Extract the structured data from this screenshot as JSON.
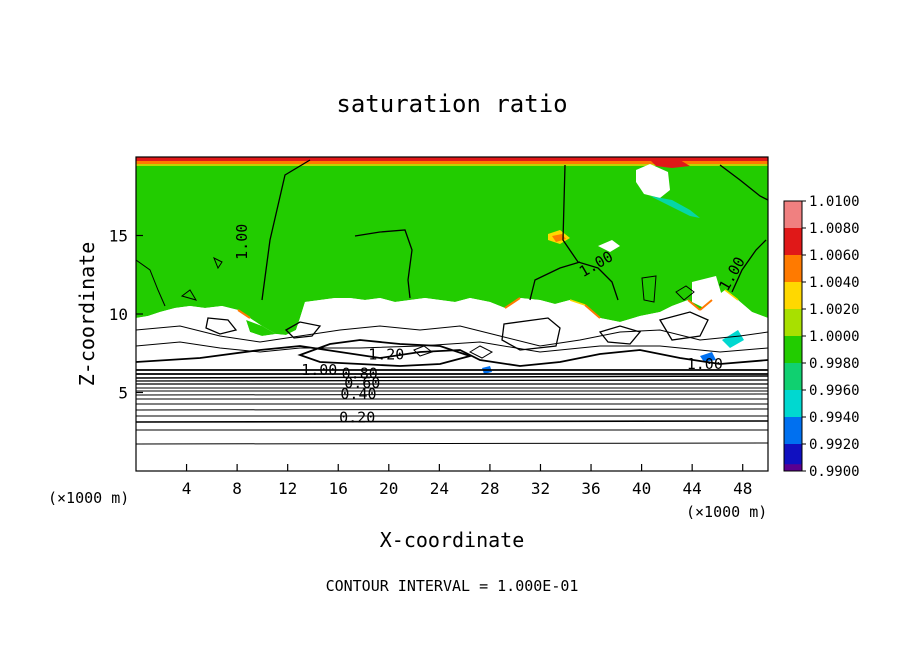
{
  "chart_data": {
    "type": "heatmap",
    "title": "saturation ratio",
    "xlabel": "X-coordinate",
    "ylabel": "Z-coordinate",
    "x_unit_label": "(×1000 m)",
    "y_unit_label": "(×1000 m)",
    "xlim": [
      0,
      50
    ],
    "ylim": [
      0,
      20
    ],
    "x_ticks": [
      4,
      8,
      12,
      16,
      20,
      24,
      28,
      32,
      36,
      40,
      44,
      48
    ],
    "y_ticks": [
      5,
      10,
      15
    ],
    "colorbar": {
      "levels": [
        "1.0100",
        "1.0080",
        "1.0060",
        "1.0040",
        "1.0020",
        "1.0000",
        "0.9980",
        "0.9960",
        "0.9940",
        "0.9920",
        "0.9900"
      ],
      "colors": [
        "#f08080",
        "#e01818",
        "#ff7a00",
        "#ffd800",
        "#a8e000",
        "#22cc00",
        "#10d070",
        "#00d8d0",
        "#0070f0",
        "#1010c0",
        "#5a0090"
      ]
    },
    "contour_labels": [
      {
        "text": "1.00",
        "x": 8.8,
        "z": 14.6
      },
      {
        "text": "1.00",
        "x": 36.6,
        "z": 12.9
      },
      {
        "text": "1.00",
        "x": 47.5,
        "z": 12.4
      },
      {
        "text": "1.20",
        "x": 19.8,
        "z": 7.1
      },
      {
        "text": "1.00",
        "x": 14.5,
        "z": 6.1
      },
      {
        "text": "0.80",
        "x": 17.7,
        "z": 5.9
      },
      {
        "text": "0.60",
        "x": 17.9,
        "z": 5.3
      },
      {
        "text": "0.40",
        "x": 17.6,
        "z": 4.6
      },
      {
        "text": "0.20",
        "x": 17.5,
        "z": 3.1
      },
      {
        "text": "1.00",
        "x": 45.0,
        "z": 6.5
      }
    ],
    "footer": "CONTOUR INTERVAL = 1.000E-01"
  }
}
